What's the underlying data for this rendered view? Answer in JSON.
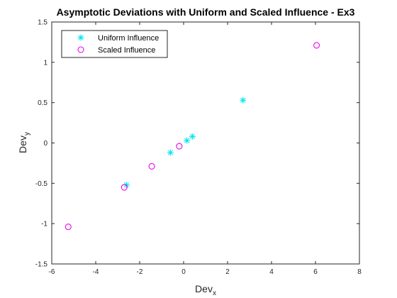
{
  "chart_data": {
    "type": "scatter",
    "title": "Asymptotic Deviations with Uniform and Scaled Influence - Ex3",
    "xlabel": "Dev",
    "xlabel_sub": "x",
    "ylabel": "Dev",
    "ylabel_sub": "y",
    "xlim": [
      -6,
      8
    ],
    "ylim": [
      -1.5,
      1.5
    ],
    "xticks": [
      -6,
      -4,
      -2,
      0,
      2,
      4,
      6,
      8
    ],
    "yticks": [
      -1.5,
      -1,
      -0.5,
      0,
      0.5,
      1,
      1.5
    ],
    "xtick_labels": [
      "-6",
      "-4",
      "-2",
      "0",
      "2",
      "4",
      "6",
      "8"
    ],
    "ytick_labels": [
      "-1.5",
      "-1",
      "-0.5",
      "0",
      "0.5",
      "1",
      "1.5"
    ],
    "grid": false,
    "legend_position": "top-left",
    "series": [
      {
        "name": "Uniform Influence",
        "marker": "asterisk",
        "color": "#00e5ee",
        "x": [
          -2.6,
          -0.6,
          0.15,
          0.4,
          2.7
        ],
        "y": [
          -0.52,
          -0.12,
          0.03,
          0.08,
          0.53
        ]
      },
      {
        "name": "Scaled Influence",
        "marker": "circle",
        "color": "#ee00ee",
        "x": [
          -5.25,
          -2.7,
          -1.45,
          -0.2,
          6.05
        ],
        "y": [
          -1.04,
          -0.55,
          -0.29,
          -0.04,
          1.21
        ]
      }
    ]
  }
}
